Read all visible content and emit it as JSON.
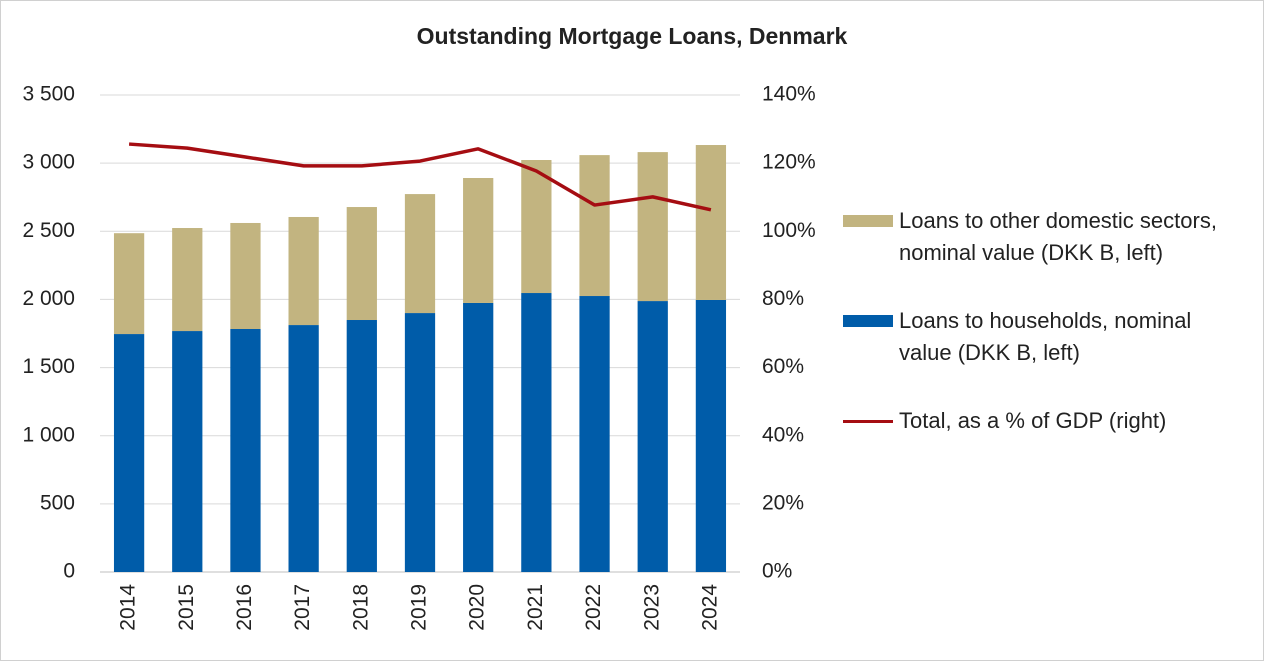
{
  "chart_data": {
    "type": "bar",
    "stacked": true,
    "title": "Outstanding Mortgage Loans, Denmark",
    "categories": [
      "2014",
      "2015",
      "2016",
      "2017",
      "2018",
      "2019",
      "2020",
      "2021",
      "2022",
      "2023",
      "2024"
    ],
    "series": [
      {
        "name": "Loans to households, nominal value (DKK B, left)",
        "type": "bar",
        "color": "#005ca9",
        "values": [
          1746,
          1768,
          1783,
          1812,
          1849,
          1900,
          1974,
          2047,
          2025,
          1988,
          1996
        ]
      },
      {
        "name": "Loans to other domestic sectors, nominal value (DKK B, left)",
        "type": "bar",
        "color": "#c2b480",
        "values": [
          740,
          756,
          778,
          793,
          829,
          873,
          917,
          976,
          1034,
          1093,
          1137
        ]
      },
      {
        "name": "Total, as a % of GDP (right)",
        "type": "line",
        "axis": "y2",
        "color": "#a50d12",
        "values": [
          125.6,
          124.4,
          121.8,
          119.2,
          119.2,
          120.6,
          124.2,
          117.7,
          107.7,
          110.1,
          106.3
        ]
      }
    ],
    "ylim": [
      0,
      3500
    ],
    "yticks": [
      0,
      500,
      {
        "value": 1000,
        "label": "1 000"
      },
      {
        "value": 1500,
        "label": "1 500"
      },
      {
        "value": 2000,
        "label": "2 000"
      },
      {
        "value": 2500,
        "label": "2 500"
      },
      {
        "value": 3000,
        "label": "3 000"
      },
      {
        "value": 3500,
        "label": "3 500"
      }
    ],
    "y2lim": [
      0,
      140
    ],
    "y2ticks": [
      {
        "value": 0,
        "label": "0%"
      },
      {
        "value": 20,
        "label": "20%"
      },
      {
        "value": 40,
        "label": "40%"
      },
      {
        "value": 60,
        "label": "60%"
      },
      {
        "value": 80,
        "label": "80%"
      },
      {
        "value": 100,
        "label": "100%"
      },
      {
        "value": 120,
        "label": "120%"
      },
      {
        "value": 140,
        "label": "140%"
      }
    ],
    "grid": true,
    "legend": "right"
  }
}
